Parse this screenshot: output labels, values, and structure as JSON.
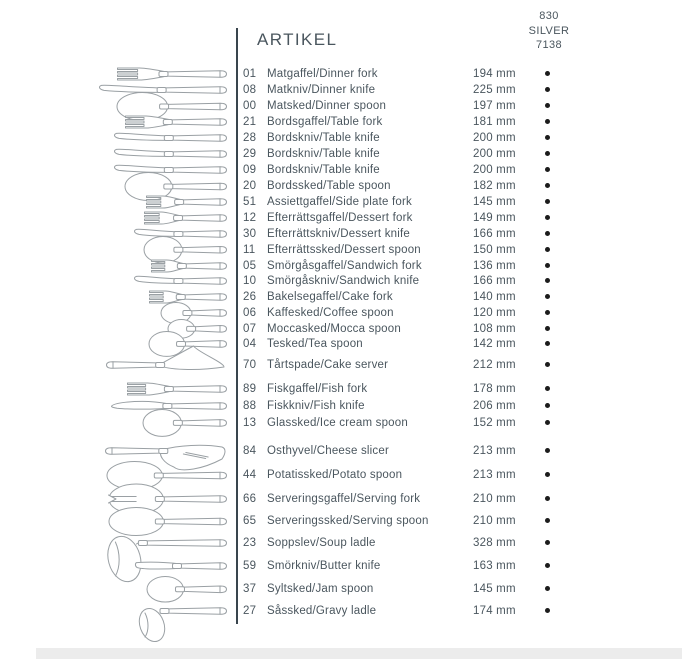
{
  "header": {
    "title": "ARTIKEL",
    "column_lines": [
      "830",
      "SILVER",
      "7138"
    ]
  },
  "table": {
    "rows": [
      {
        "num": "01",
        "name": "Matgaffel/Dinner fork",
        "size": "194 mm",
        "icon": "fork",
        "dot": true
      },
      {
        "num": "08",
        "name": "Matkniv/Dinner knife",
        "size": "225 mm",
        "icon": "knife",
        "dot": true
      },
      {
        "num": "00",
        "name": "Matsked/Dinner spoon",
        "size": "197 mm",
        "icon": "spoon",
        "dot": true
      },
      {
        "num": "21",
        "name": "Bordsgaffel/Table fork",
        "size": "181 mm",
        "icon": "fork",
        "dot": true
      },
      {
        "num": "28",
        "name": "Bordskniv/Table knife",
        "size": "200 mm",
        "icon": "knife",
        "dot": true
      },
      {
        "num": "29",
        "name": "Bordskniv/Table knife",
        "size": "200 mm",
        "icon": "knife",
        "dot": true
      },
      {
        "num": "09",
        "name": "Bordskniv/Table knife",
        "size": "200 mm",
        "icon": "knife",
        "dot": true
      },
      {
        "num": "20",
        "name": "Bordssked/Table spoon",
        "size": "182 mm",
        "icon": "spoon",
        "dot": true
      },
      {
        "num": "51",
        "name": "Assiettgaffel/Side plate fork",
        "size": "145 mm",
        "icon": "fork",
        "dot": true
      },
      {
        "num": "12",
        "name": "Efterrättsgaffel/Dessert fork",
        "size": "149 mm",
        "icon": "fork",
        "dot": true
      },
      {
        "num": "30",
        "name": "Efterrättskniv/Dessert knife",
        "size": "166 mm",
        "icon": "knife",
        "dot": true
      },
      {
        "num": "11",
        "name": "Efterrättssked/Dessert spoon",
        "size": "150 mm",
        "icon": "spoon",
        "dot": true
      },
      {
        "num": "05",
        "name": "Smörgåsgaffel/Sandwich fork",
        "size": "136 mm",
        "icon": "fork",
        "dot": true
      },
      {
        "num": "10",
        "name": "Smörgåskniv/Sandwich knife",
        "size": "166 mm",
        "icon": "knife",
        "dot": true
      },
      {
        "num": "26",
        "name": "Bakelsegaffel/Cake fork",
        "size": "140 mm",
        "icon": "fork",
        "dot": true
      },
      {
        "num": "06",
        "name": "Kaffesked/Coffee spoon",
        "size": "120 mm",
        "icon": "spoon",
        "dot": true
      },
      {
        "num": "07",
        "name": "Moccasked/Mocca spoon",
        "size": "108 mm",
        "icon": "spoon",
        "dot": true
      },
      {
        "num": "04",
        "name": "Tesked/Tea spoon",
        "size": "142 mm",
        "icon": "spoon",
        "dot": true
      },
      {
        "num": "70",
        "name": "Tårtspade/Cake server",
        "size": "212 mm",
        "icon": "cake-server",
        "dot": true
      },
      {
        "num": "89",
        "name": "Fiskgaffel/Fish fork",
        "size": "178 mm",
        "icon": "fork",
        "dot": true
      },
      {
        "num": "88",
        "name": "Fiskkniv/Fish knife",
        "size": "206 mm",
        "icon": "fish-knife",
        "dot": true
      },
      {
        "num": "13",
        "name": "Glassked/Ice cream spoon",
        "size": "152 mm",
        "icon": "spoon",
        "dot": true
      },
      {
        "num": "84",
        "name": "Osthyvel/Cheese slicer",
        "size": "213 mm",
        "icon": "cheese-slicer",
        "dot": true
      },
      {
        "num": "44",
        "name": "Potatissked/Potato spoon",
        "size": "213 mm",
        "icon": "spoon",
        "dot": true
      },
      {
        "num": "66",
        "name": "Serveringsgaffel/Serving fork",
        "size": "210 mm",
        "icon": "serving-fork",
        "dot": true
      },
      {
        "num": "65",
        "name": "Serveringssked/Serving spoon",
        "size": "210 mm",
        "icon": "spoon",
        "dot": true
      },
      {
        "num": "23",
        "name": "Soppslev/Soup ladle",
        "size": "328 mm",
        "icon": "ladle",
        "dot": true
      },
      {
        "num": "59",
        "name": "Smörkniv/Butter knife",
        "size": "163 mm",
        "icon": "butter-knife",
        "dot": true
      },
      {
        "num": "37",
        "name": "Syltsked/Jam spoon",
        "size": "145 mm",
        "icon": "spoon",
        "dot": true
      },
      {
        "num": "27",
        "name": "Såssked/Gravy ladle",
        "size": "174 mm",
        "icon": "gravy-ladle",
        "dot": true
      }
    ]
  },
  "colors": {
    "text": "#4a565e",
    "rule": "#39454d",
    "dot": "#1c1c1c",
    "illustration_stroke": "#9aa0a4",
    "bottom_band": "#ececec"
  }
}
